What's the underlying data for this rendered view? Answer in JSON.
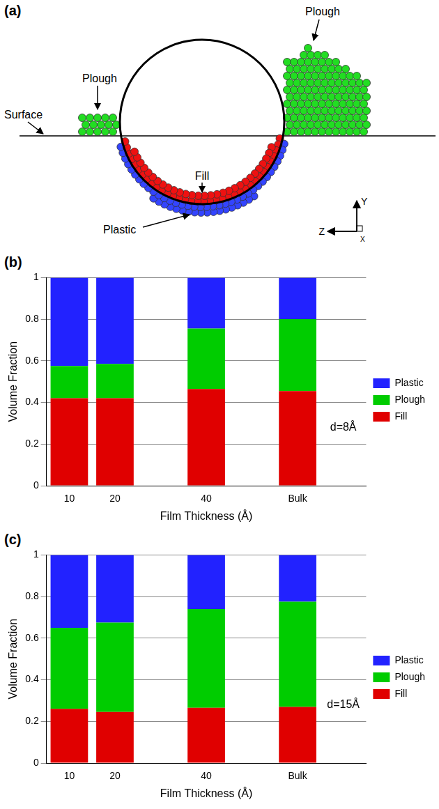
{
  "diagram": {
    "label": "(a)",
    "annotations": [
      "Plough",
      "Plough",
      "Surface",
      "Fill",
      "Plastic"
    ],
    "axes": [
      "Y",
      "Z",
      "X"
    ]
  },
  "chart_data": [
    {
      "type": "bar",
      "label": "(b)",
      "annotation": "d=8Å",
      "x_label": "Film Thickness (Å)",
      "y_label": "Volume Fraction",
      "categories": [
        "10",
        "20",
        null,
        "40",
        null,
        "Bulk",
        null
      ],
      "series": [
        {
          "name": "Fill",
          "color": "#e00000",
          "values": [
            0.42,
            0.42,
            null,
            0.465,
            null,
            0.455,
            null
          ]
        },
        {
          "name": "Plough",
          "color": "#00cc00",
          "values": [
            0.155,
            0.165,
            null,
            0.29,
            null,
            0.345,
            null
          ]
        },
        {
          "name": "Plastic",
          "color": "#2222ff",
          "values": [
            0.425,
            0.415,
            null,
            0.245,
            null,
            0.2,
            null
          ]
        }
      ],
      "stacked": true,
      "ylim": [
        0,
        1
      ],
      "yticks": [
        0,
        0.2,
        0.4,
        0.6,
        0.8,
        1
      ],
      "grid": true,
      "legend": "right"
    },
    {
      "type": "bar",
      "label": "(c)",
      "annotation": "d=15Å",
      "x_label": "Film Thickness (Å)",
      "y_label": "Volume Fraction",
      "categories": [
        "10",
        "20",
        null,
        "40",
        null,
        "Bulk",
        null
      ],
      "series": [
        {
          "name": "Fill",
          "color": "#e00000",
          "values": [
            0.26,
            0.245,
            null,
            0.265,
            null,
            0.27,
            null
          ]
        },
        {
          "name": "Plough",
          "color": "#00cc00",
          "values": [
            0.39,
            0.43,
            null,
            0.475,
            null,
            0.505,
            null
          ]
        },
        {
          "name": "Plastic",
          "color": "#2222ff",
          "values": [
            0.35,
            0.325,
            null,
            0.26,
            null,
            0.225,
            null
          ]
        }
      ],
      "stacked": true,
      "ylim": [
        0,
        1
      ],
      "yticks": [
        0,
        0.2,
        0.4,
        0.6,
        0.8,
        1
      ],
      "grid": true,
      "legend": "right"
    }
  ]
}
